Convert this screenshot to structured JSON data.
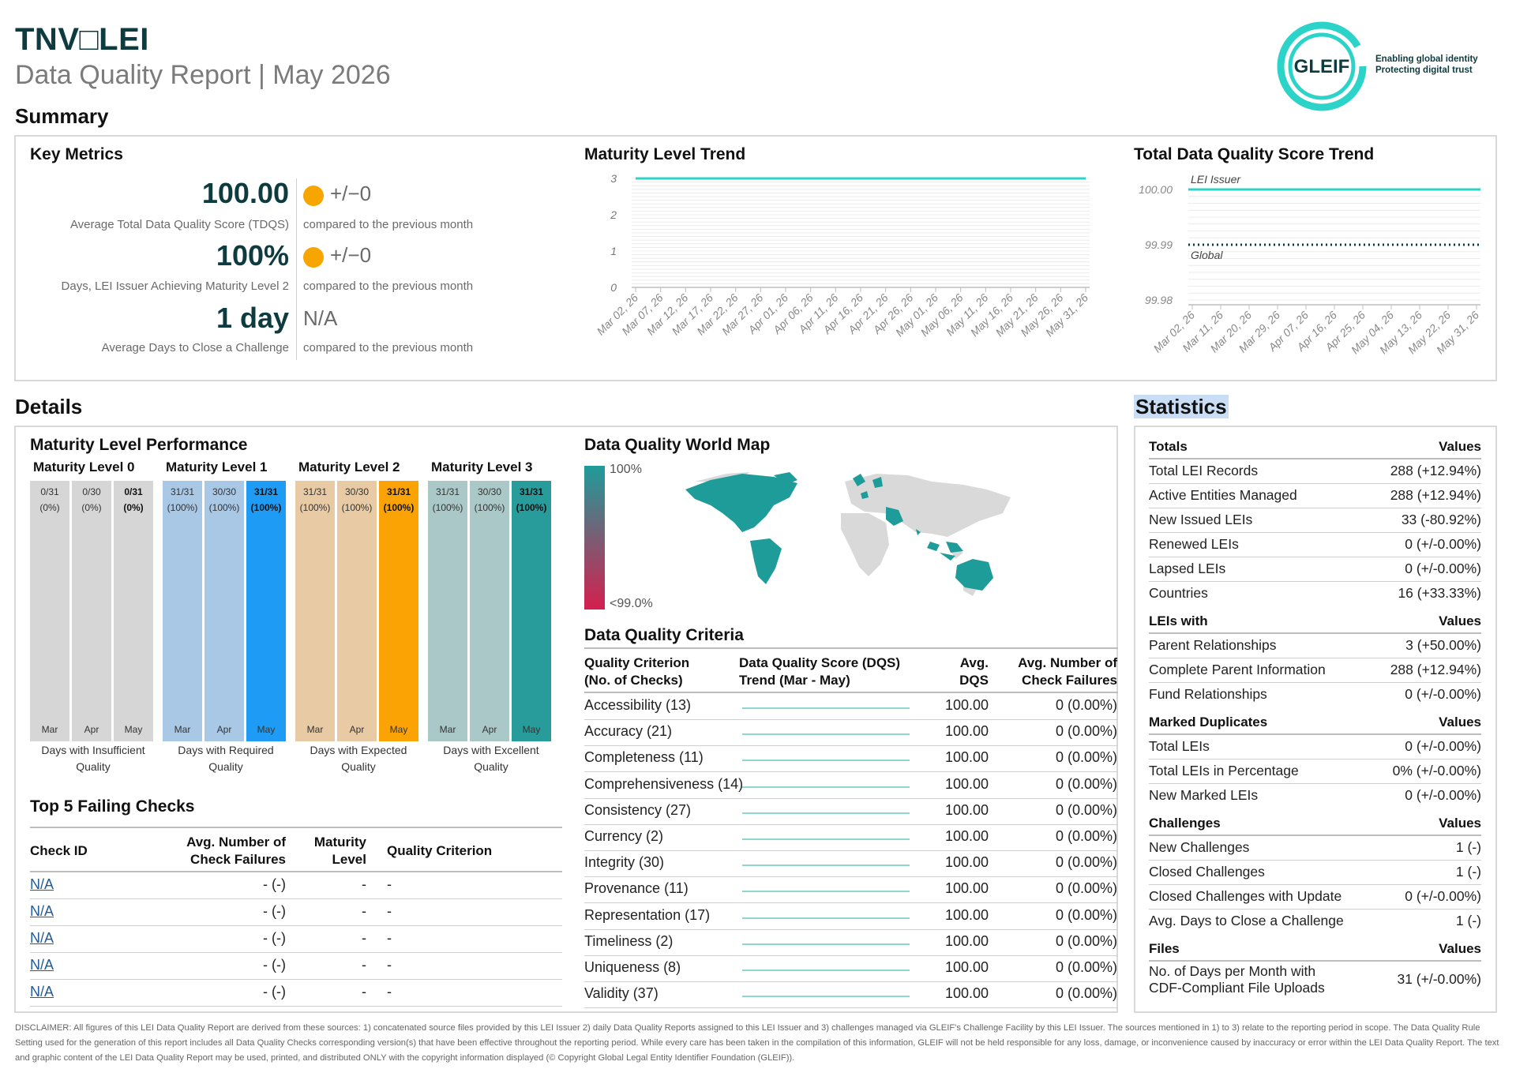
{
  "header": {
    "issuer_title": "TNV□LEI",
    "report_title": "Data Quality Report | May 2026",
    "logo_text": "GLEIF",
    "logo_tagline_1": "Enabling global identity",
    "logo_tagline_2": "Protecting digital trust"
  },
  "sections": {
    "summary": "Summary",
    "details": "Details",
    "statistics": "Statistics"
  },
  "key_metrics": {
    "title": "Key Metrics",
    "items": [
      {
        "value": "100.00",
        "label": "Average Total Data Quality Score (TDQS)",
        "delta": "+/−0",
        "compare": "compared to the previous month",
        "indicator": "orange-dot"
      },
      {
        "value": "100%",
        "label": "Days, LEI Issuer Achieving Maturity Level 2",
        "delta": "+/−0",
        "compare": "compared to the previous month",
        "indicator": "orange-dot"
      },
      {
        "value": "1 day",
        "label": "Average Days to Close a Challenge",
        "delta": "N/A",
        "compare": "compared to the previous month",
        "indicator": "none"
      }
    ]
  },
  "maturity_trend": {
    "title": "Maturity Level Trend",
    "chart_data": {
      "type": "line",
      "yticks": [
        "3",
        "2",
        "1",
        "0"
      ],
      "ylim": [
        0,
        3
      ],
      "x": [
        "Mar 02, 26",
        "Mar 07, 26",
        "Mar 12, 26",
        "Mar 17, 26",
        "Mar 22, 26",
        "Mar 27, 26",
        "Apr 01, 26",
        "Apr 06, 26",
        "Apr 11, 26",
        "Apr 16, 26",
        "Apr 21, 26",
        "Apr 26, 26",
        "May 01, 26",
        "May 06, 26",
        "May 11, 26",
        "May 16, 26",
        "May 21, 26",
        "May 26, 26",
        "May 31, 26"
      ],
      "series": [
        {
          "values": [
            3,
            3,
            3,
            3,
            3,
            3,
            3,
            3,
            3,
            3,
            3,
            3,
            3,
            3,
            3,
            3,
            3,
            3,
            3
          ],
          "color": "#2cd3c8"
        }
      ]
    }
  },
  "tdqs_trend": {
    "title": "Total Data Quality Score Trend",
    "chart_data": {
      "type": "line",
      "yticks": [
        "100.00",
        "99.99",
        "99.98"
      ],
      "ylim": [
        99.98,
        100.0
      ],
      "x": [
        "Mar 02, 26",
        "Mar 11, 26",
        "Mar 20, 26",
        "Mar 29, 26",
        "Apr 07, 26",
        "Apr 16, 26",
        "Apr 25, 26",
        "May 04, 26",
        "May 13, 26",
        "May 22, 26",
        "May 31, 26"
      ],
      "series": [
        {
          "name": "LEI Issuer",
          "values": [
            100,
            100,
            100,
            100,
            100,
            100,
            100,
            100,
            100,
            100,
            100
          ],
          "color": "#2cd3c8",
          "style": "solid"
        },
        {
          "name": "Global",
          "values": [
            99.99,
            99.99,
            99.99,
            99.99,
            99.99,
            99.99,
            99.99,
            99.99,
            99.99,
            99.99,
            99.99
          ],
          "color": "#0e3b3f",
          "style": "dotted"
        }
      ]
    }
  },
  "maturity_performance": {
    "title": "Maturity Level Performance",
    "groups": [
      {
        "title": "Maturity Level 0",
        "caption": "Days with Insufficient Quality",
        "colors": [
          "#d6d6d6",
          "#d6d6d6",
          "#d6d6d6"
        ],
        "bars": [
          {
            "month": "Mar",
            "count": "0/31",
            "pct": "(0%)"
          },
          {
            "month": "Apr",
            "count": "0/30",
            "pct": "(0%)"
          },
          {
            "month": "May",
            "count": "0/31",
            "pct": "(0%)"
          }
        ]
      },
      {
        "title": "Maturity Level 1",
        "caption": "Days with Required Quality",
        "colors": [
          "#a9c8e6",
          "#a9c8e6",
          "#1e9cf5"
        ],
        "bars": [
          {
            "month": "Mar",
            "count": "31/31",
            "pct": "(100%)"
          },
          {
            "month": "Apr",
            "count": "30/30",
            "pct": "(100%)"
          },
          {
            "month": "May",
            "count": "31/31",
            "pct": "(100%)"
          }
        ]
      },
      {
        "title": "Maturity Level 2",
        "caption": "Days with Expected Quality",
        "colors": [
          "#e8cba5",
          "#e8cba5",
          "#fba304"
        ],
        "bars": [
          {
            "month": "Mar",
            "count": "31/31",
            "pct": "(100%)"
          },
          {
            "month": "Apr",
            "count": "30/30",
            "pct": "(100%)"
          },
          {
            "month": "May",
            "count": "31/31",
            "pct": "(100%)"
          }
        ]
      },
      {
        "title": "Maturity Level 3",
        "caption": "Days with Excellent Quality",
        "colors": [
          "#abc8c8",
          "#abc8c8",
          "#289c9a"
        ],
        "bars": [
          {
            "month": "Mar",
            "count": "31/31",
            "pct": "(100%)"
          },
          {
            "month": "Apr",
            "count": "30/30",
            "pct": "(100%)"
          },
          {
            "month": "May",
            "count": "31/31",
            "pct": "(100%)"
          }
        ]
      }
    ]
  },
  "top_failing": {
    "title": "Top 5 Failing Checks",
    "headers": {
      "check_id": "Check ID",
      "avg_failures_1": "Avg. Number of",
      "avg_failures_2": "Check Failures",
      "maturity_1": "Maturity",
      "maturity_2": "Level",
      "criterion": "Quality Criterion"
    },
    "rows": [
      {
        "id": "N/A",
        "avg": "- (-)",
        "level": "-",
        "criterion": "-"
      },
      {
        "id": "N/A",
        "avg": "- (-)",
        "level": "-",
        "criterion": "-"
      },
      {
        "id": "N/A",
        "avg": "- (-)",
        "level": "-",
        "criterion": "-"
      },
      {
        "id": "N/A",
        "avg": "- (-)",
        "level": "-",
        "criterion": "-"
      },
      {
        "id": "N/A",
        "avg": "- (-)",
        "level": "-",
        "criterion": "-"
      }
    ]
  },
  "world_map": {
    "title": "Data Quality World Map",
    "legend_high": "100%",
    "legend_low": "<99.0%",
    "colors": {
      "high": "#1e9c9a",
      "low": "#d41f4e",
      "land": "#d9d9d9"
    }
  },
  "criteria": {
    "title": "Data Quality Criteria",
    "headers": {
      "c1a": "Quality Criterion",
      "c1b": "(No. of Checks)",
      "c2a": "Data Quality Score (DQS)",
      "c2b": "Trend (Mar - May)",
      "c3a": "Avg.",
      "c3b": "DQS",
      "c4a": "Avg. Number of",
      "c4b": "Check Failures"
    },
    "rows": [
      {
        "name": "Accessibility (13)",
        "dqs": "100.00",
        "fail": "0 (0.00%)"
      },
      {
        "name": "Accuracy (21)",
        "dqs": "100.00",
        "fail": "0 (0.00%)"
      },
      {
        "name": "Completeness (11)",
        "dqs": "100.00",
        "fail": "0 (0.00%)"
      },
      {
        "name": "Comprehensiveness (14)",
        "dqs": "100.00",
        "fail": "0 (0.00%)"
      },
      {
        "name": "Consistency (27)",
        "dqs": "100.00",
        "fail": "0 (0.00%)"
      },
      {
        "name": "Currency (2)",
        "dqs": "100.00",
        "fail": "0 (0.00%)"
      },
      {
        "name": "Integrity (30)",
        "dqs": "100.00",
        "fail": "0 (0.00%)"
      },
      {
        "name": "Provenance (11)",
        "dqs": "100.00",
        "fail": "0 (0.00%)"
      },
      {
        "name": "Representation (17)",
        "dqs": "100.00",
        "fail": "0 (0.00%)"
      },
      {
        "name": "Timeliness (2)",
        "dqs": "100.00",
        "fail": "0 (0.00%)"
      },
      {
        "name": "Uniqueness (8)",
        "dqs": "100.00",
        "fail": "0 (0.00%)"
      },
      {
        "name": "Validity (37)",
        "dqs": "100.00",
        "fail": "0 (0.00%)"
      }
    ]
  },
  "statistics": {
    "groups": [
      {
        "title": "Totals",
        "values_label": "Values",
        "rows": [
          {
            "label": "Total LEI Records",
            "value": "288 (+12.94%)"
          },
          {
            "label": "Active Entities Managed",
            "value": "288 (+12.94%)"
          },
          {
            "label": "New Issued LEIs",
            "value": "33 (-80.92%)"
          },
          {
            "label": "Renewed LEIs",
            "value": "0 (+/-0.00%)"
          },
          {
            "label": "Lapsed LEIs",
            "value": "0 (+/-0.00%)"
          },
          {
            "label": "Countries",
            "value": "16 (+33.33%)"
          }
        ]
      },
      {
        "title": "LEIs with",
        "values_label": "Values",
        "rows": [
          {
            "label": "Parent Relationships",
            "value": "3 (+50.00%)"
          },
          {
            "label": "Complete Parent Information",
            "value": "288 (+12.94%)"
          },
          {
            "label": "Fund Relationships",
            "value": "0 (+/-0.00%)"
          }
        ]
      },
      {
        "title": "Marked Duplicates",
        "values_label": "Values",
        "rows": [
          {
            "label": "Total LEIs",
            "value": "0 (+/-0.00%)"
          },
          {
            "label": "Total LEIs in Percentage",
            "value": "0% (+/-0.00%)"
          },
          {
            "label": "New Marked LEIs",
            "value": "0 (+/-0.00%)"
          }
        ]
      },
      {
        "title": "Challenges",
        "values_label": "Values",
        "rows": [
          {
            "label": "New Challenges",
            "value": "1 (-)"
          },
          {
            "label": "Closed Challenges",
            "value": "1 (-)"
          },
          {
            "label": "Closed Challenges with Update",
            "value": "0 (+/-0.00%)"
          },
          {
            "label": "Avg. Days to Close a Challenge",
            "value": "1 (-)"
          }
        ]
      },
      {
        "title": "Files",
        "values_label": "Values",
        "rows": [
          {
            "label": "No. of Days per Month with",
            "label2": "CDF-Compliant File Uploads",
            "value": "31 (+/-0.00%)"
          }
        ]
      }
    ]
  },
  "disclaimer": "DISCLAIMER: All figures of this LEI Data Quality Report are derived from these sources: 1) concatenated source files provided by this LEI Issuer 2) daily Data Quality Reports assigned to this LEI Issuer and 3) challenges managed via GLEIF's Challenge Facility by this LEI Issuer. The sources mentioned in 1) to 3) relate to the reporting period in scope. The Data Quality Rule Setting used for the generation of this report includes all Data Quality Checks corresponding version(s) that have been effective throughout the reporting period. While every care has been taken in the compilation of this information, GLEIF will not be held responsible for any loss, damage, or inconvenience caused by inaccuracy or error within the LEI Data Quality Report. The text and graphic content of the LEI Data Quality Report may be used, printed, and distributed ONLY with the copyright information displayed (© Copyright Global Legal Entity Identifier Foundation (GLEIF))."
}
